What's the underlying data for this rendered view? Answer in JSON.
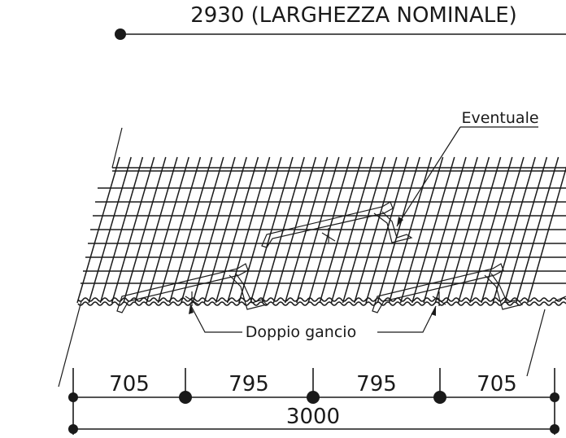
{
  "title": "2930 (LARGHEZZA NOMINALE)",
  "labels": {
    "eventuale": "Eventuale",
    "doppio_gancio": "Doppio gancio"
  },
  "dimensions": {
    "segments": [
      "705",
      "795",
      "795",
      "705"
    ],
    "total": "3000"
  }
}
